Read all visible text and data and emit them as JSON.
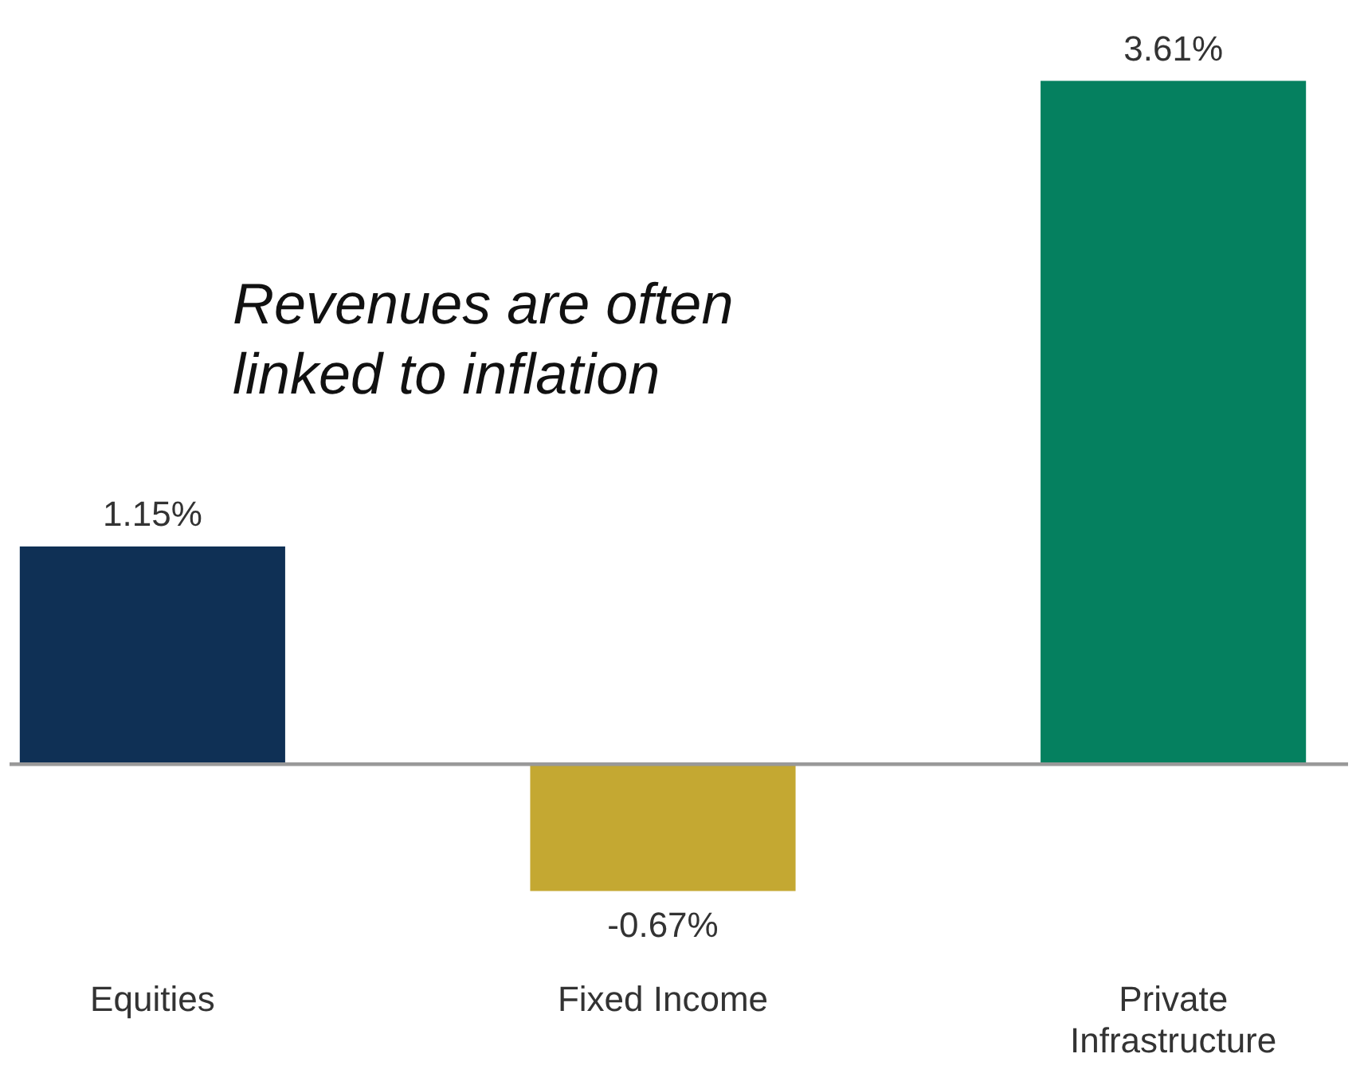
{
  "chart_data": {
    "type": "bar",
    "categories": [
      "Equities",
      "Fixed Income",
      "Private Infrastructure"
    ],
    "values": [
      1.15,
      -0.67,
      3.61
    ],
    "colors": [
      "#0f3055",
      "#c4a832",
      "#05805f"
    ],
    "value_labels": [
      "1.15%",
      "-0.67%",
      "3.61%"
    ],
    "annotations": [
      "Revenues are often linked to inflation"
    ]
  }
}
